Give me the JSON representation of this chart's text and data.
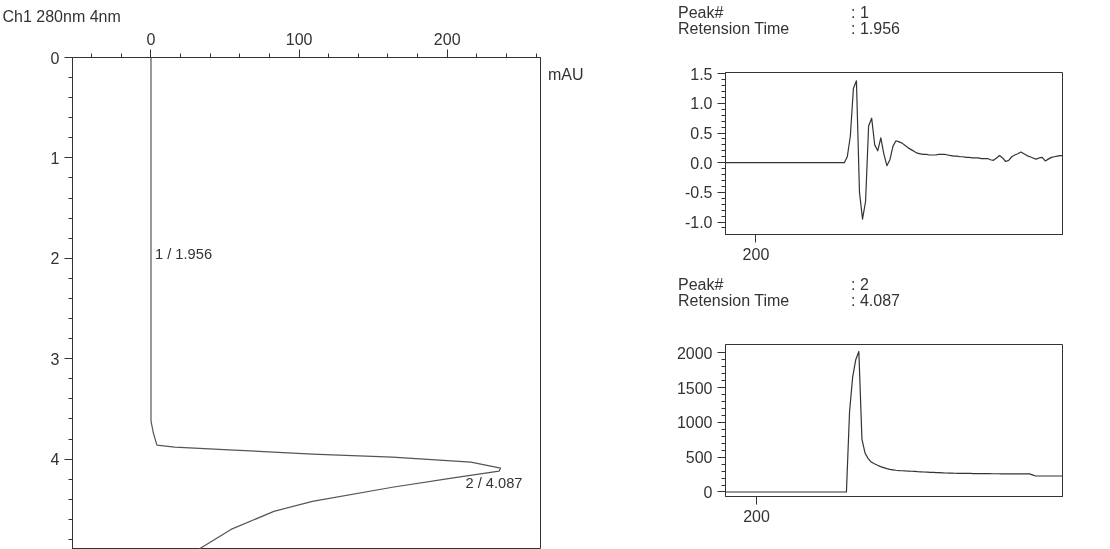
{
  "chart_data": [
    {
      "type": "line",
      "title": "Ch1 280nm 4nm",
      "xlabel": "mAU",
      "xlim": [
        -53,
        263
      ],
      "ylim": [
        4.9,
        0
      ],
      "xticks": [
        {
          "value": -40,
          "label": null
        },
        {
          "value": -20,
          "label": null
        },
        0,
        {
          "value": 20,
          "label": null
        },
        {
          "value": 40,
          "label": null
        },
        {
          "value": 60,
          "label": null
        },
        {
          "value": 80,
          "label": null
        },
        100,
        {
          "value": 120,
          "label": null
        },
        {
          "value": 140,
          "label": null
        },
        {
          "value": 160,
          "label": null
        },
        {
          "value": 180,
          "label": null
        },
        200,
        {
          "value": 220,
          "label": null
        },
        {
          "value": 240,
          "label": null
        },
        {
          "value": 260,
          "label": null
        }
      ],
      "yticks": [
        0,
        {
          "value": 0.2,
          "label": null
        },
        {
          "value": 0.4,
          "label": null
        },
        {
          "value": 0.6,
          "label": null
        },
        {
          "value": 0.8,
          "label": null
        },
        1,
        {
          "value": 1.2,
          "label": null
        },
        {
          "value": 1.4,
          "label": null
        },
        {
          "value": 1.6,
          "label": null
        },
        {
          "value": 1.8,
          "label": null
        },
        2,
        {
          "value": 2.2,
          "label": null
        },
        {
          "value": 2.4,
          "label": null
        },
        {
          "value": 2.6,
          "label": null
        },
        {
          "value": 2.8,
          "label": null
        },
        3,
        {
          "value": 3.2,
          "label": null
        },
        {
          "value": 3.4,
          "label": null
        },
        {
          "value": 3.6,
          "label": null
        },
        {
          "value": 3.8,
          "label": null
        },
        4,
        {
          "value": 4.2,
          "label": null
        },
        {
          "value": 4.4,
          "label": null
        },
        {
          "value": 4.6,
          "label": null
        },
        {
          "value": 4.8,
          "label": null
        }
      ],
      "grid": false,
      "series": [
        {
          "color": "#555555",
          "x": [
            0,
            0,
            1.6,
            4,
            16,
            56,
            109,
            163,
            216,
            236,
            235,
            203,
            163,
            109,
            83,
            54,
            32
          ],
          "values": [
            0,
            3.62,
            3.74,
            3.86,
            3.88,
            3.91,
            3.95,
            3.98,
            4.03,
            4.09,
            4.12,
            4.19,
            4.28,
            4.42,
            4.52,
            4.7,
            4.9
          ]
        }
      ],
      "annotations": [
        {
          "text": "1 / 1.956",
          "x": 0,
          "y": 1.956
        },
        {
          "text": "2 / 4.087",
          "x": 236,
          "y": 4.087
        }
      ]
    },
    {
      "type": "line",
      "annotations": [
        "Peak#",
        ": 1",
        "Retension Time",
        ": 1.956"
      ],
      "ylim": [
        -1.21,
        1.52
      ],
      "categories": [
        null,
        null,
        null,
        null,
        null,
        null,
        null,
        null,
        null,
        null,
        "200",
        null,
        null,
        null,
        null,
        null,
        null,
        null,
        null,
        null,
        null,
        null,
        null,
        null,
        null,
        null,
        null,
        null,
        null,
        null,
        null,
        null,
        null,
        null,
        null,
        null,
        null,
        null,
        null,
        null,
        null,
        null,
        null,
        null,
        null,
        null,
        null,
        null,
        null,
        null,
        null,
        null,
        null,
        null,
        null,
        null,
        null,
        null,
        null,
        null,
        null,
        null,
        null,
        null,
        null,
        null,
        null,
        null,
        null,
        null,
        null,
        null,
        null,
        null,
        null,
        null,
        null,
        null,
        null,
        null,
        null,
        null,
        null,
        null,
        null,
        null,
        null,
        null,
        null,
        null,
        null,
        null,
        null,
        null,
        null,
        null,
        null,
        null,
        null,
        null,
        null,
        null,
        null,
        null,
        null,
        null,
        null,
        null,
        null,
        null,
        null,
        null
      ],
      "yticks": [
        {
          "value": 1.5,
          "label": "1.5"
        },
        {
          "value": 1.0,
          "label": "1.0"
        },
        {
          "value": 0.5,
          "label": "0.5"
        },
        {
          "value": 0.0,
          "label": "0.0"
        },
        {
          "value": -0.5,
          "label": "-0.5"
        },
        {
          "value": -1.0,
          "label": "-1.0"
        },
        {
          "value": 1.4,
          "label": null
        },
        {
          "value": 1.3,
          "label": null
        },
        {
          "value": 1.2,
          "label": null
        },
        {
          "value": 1.1,
          "label": null
        },
        {
          "value": 0.9,
          "label": null
        },
        {
          "value": 0.8,
          "label": null
        },
        {
          "value": 0.7,
          "label": null
        },
        {
          "value": 0.6,
          "label": null
        },
        {
          "value": 0.4,
          "label": null
        },
        {
          "value": 0.3,
          "label": null
        },
        {
          "value": 0.2,
          "label": null
        },
        {
          "value": 0.1,
          "label": null
        },
        {
          "value": -0.1,
          "label": null
        },
        {
          "value": -0.2,
          "label": null
        },
        {
          "value": -0.3,
          "label": null
        },
        {
          "value": -0.4,
          "label": null
        },
        {
          "value": -0.6,
          "label": null
        },
        {
          "value": -0.7,
          "label": null
        },
        {
          "value": -0.8,
          "label": null
        },
        {
          "value": -0.9,
          "label": null
        },
        {
          "value": -1.1,
          "label": null
        }
      ],
      "grid": false,
      "series": [
        {
          "color": "#333333",
          "values": [
            0,
            0,
            0,
            0,
            0,
            0,
            0,
            0,
            0,
            0,
            0,
            0,
            0,
            0,
            0,
            0,
            0,
            0,
            0,
            0,
            0,
            0,
            0,
            0,
            0,
            0,
            0,
            0,
            0,
            0,
            0,
            0,
            0,
            0,
            0,
            0,
            0,
            0,
            0,
            0,
            0.1,
            0.45,
            1.25,
            1.38,
            -0.5,
            -0.95,
            -0.65,
            0.62,
            0.75,
            0.3,
            0.2,
            0.42,
            0.15,
            -0.05,
            0.05,
            0.28,
            0.37,
            0.35,
            0.33,
            0.29,
            0.25,
            0.22,
            0.19,
            0.16,
            0.15,
            0.14,
            0.14,
            0.13,
            0.13,
            0.13,
            0.14,
            0.14,
            0.14,
            0.13,
            0.12,
            0.11,
            0.11,
            0.1,
            0.1,
            0.09,
            0.09,
            0.08,
            0.08,
            0.08,
            0.07,
            0.07,
            0.07,
            0.05,
            0.04,
            0.08,
            0.12,
            0.08,
            0.02,
            0.04,
            0.1,
            0.13,
            0.15,
            0.18,
            0.15,
            0.12,
            0.1,
            0.08,
            0.06,
            0.08,
            0.09,
            0.03,
            0.06,
            0.09,
            0.1,
            0.11,
            0.12,
            0.12
          ]
        }
      ]
    },
    {
      "type": "line",
      "annotations": [
        "Peak#",
        ": 2",
        "Retension Time",
        ": 4.087"
      ],
      "ylim": [
        -65,
        2120
      ],
      "categories": [
        null,
        null,
        null,
        null,
        null,
        null,
        null,
        null,
        null,
        null,
        "200",
        null,
        null,
        null,
        null,
        null,
        null,
        null,
        null,
        null,
        null,
        null,
        null,
        null,
        null,
        null,
        null,
        null,
        null,
        null,
        null,
        null,
        null,
        null,
        null,
        null,
        null,
        null,
        null,
        null,
        null,
        null,
        null,
        null,
        null,
        null,
        null,
        null,
        null,
        null,
        null,
        null,
        null,
        null,
        null,
        null,
        null,
        null,
        null,
        null,
        null,
        null,
        null,
        null,
        null,
        null,
        null,
        null,
        null,
        null,
        null,
        null,
        null,
        null,
        null,
        null,
        null,
        null,
        null,
        null,
        null,
        null,
        null,
        null,
        null,
        null,
        null,
        null,
        null,
        null,
        null,
        null,
        null,
        null,
        null,
        null,
        null,
        null,
        null,
        null,
        null,
        null,
        null,
        null,
        null,
        null,
        null,
        null,
        null,
        null
      ],
      "yticks": [
        0,
        500,
        1000,
        1500,
        2000,
        {
          "value": 100,
          "label": null
        },
        {
          "value": 200,
          "label": null
        },
        {
          "value": 300,
          "label": null
        },
        {
          "value": 400,
          "label": null
        },
        {
          "value": 600,
          "label": null
        },
        {
          "value": 700,
          "label": null
        },
        {
          "value": 800,
          "label": null
        },
        {
          "value": 900,
          "label": null
        },
        {
          "value": 1100,
          "label": null
        },
        {
          "value": 1200,
          "label": null
        },
        {
          "value": 1300,
          "label": null
        },
        {
          "value": 1400,
          "label": null
        },
        {
          "value": 1600,
          "label": null
        },
        {
          "value": 1700,
          "label": null
        },
        {
          "value": 1800,
          "label": null
        },
        {
          "value": 1900,
          "label": null
        }
      ],
      "grid": false,
      "series": [
        {
          "color": "#333333",
          "values": [
            0,
            0,
            0,
            0,
            0,
            0,
            0,
            0,
            0,
            0,
            0,
            0,
            0,
            0,
            0,
            0,
            0,
            0,
            0,
            0,
            0,
            0,
            0,
            0,
            0,
            0,
            0,
            0,
            0,
            0,
            0,
            0,
            0,
            0,
            0,
            0,
            0,
            0,
            0,
            0,
            1150,
            1650,
            1900,
            2020,
            760,
            560,
            480,
            430,
            405,
            385,
            365,
            350,
            335,
            325,
            318,
            312,
            308,
            305,
            302,
            300,
            298,
            295,
            292,
            290,
            287,
            285,
            283,
            281,
            279,
            277,
            275,
            273,
            271,
            270,
            269,
            268,
            267,
            267,
            266,
            266,
            265,
            264,
            264,
            263,
            263,
            263,
            262,
            262,
            262,
            261,
            261,
            261,
            260,
            260,
            260,
            260,
            260,
            260,
            260,
            245,
            230,
            230,
            230,
            230,
            230,
            230,
            230,
            230,
            230,
            230
          ]
        }
      ]
    }
  ]
}
